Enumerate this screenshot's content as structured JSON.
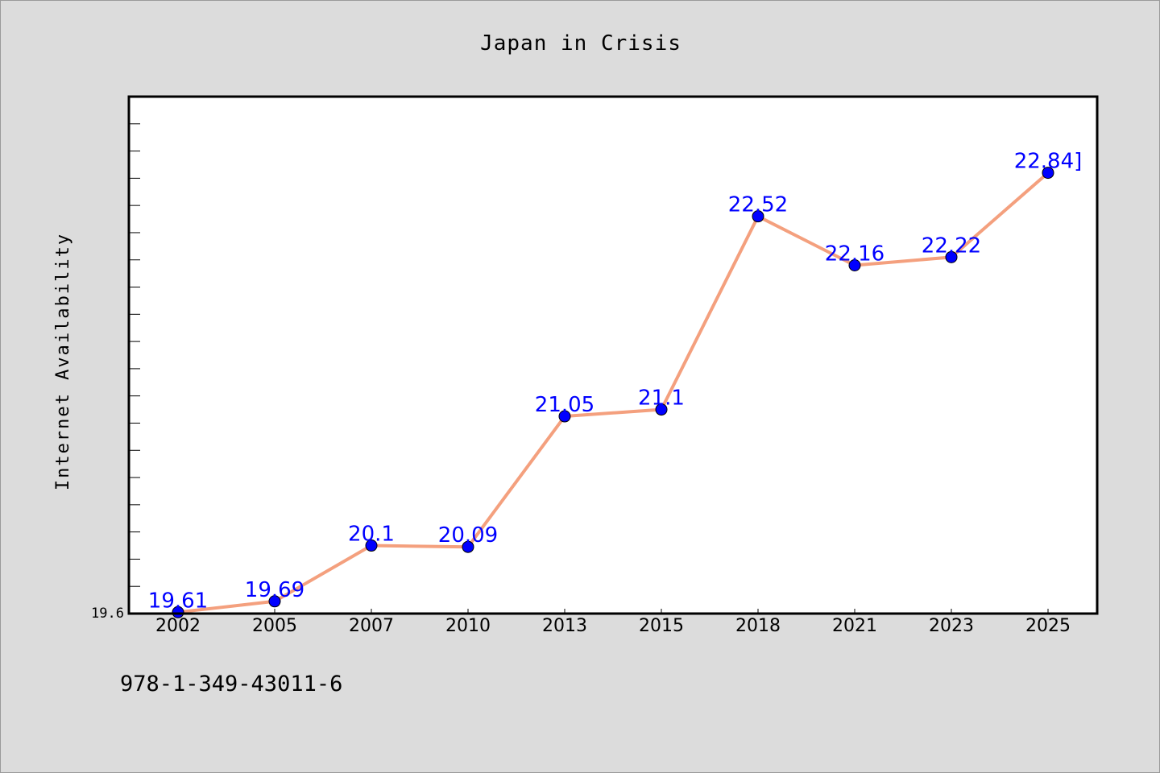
{
  "chart_data": {
    "type": "line",
    "title": "Japan in Crisis",
    "ylabel": "Internet Availability",
    "xlabel": "",
    "categories": [
      "2002",
      "2005",
      "2007",
      "2010",
      "2013",
      "2015",
      "2018",
      "2021",
      "2023",
      "2025"
    ],
    "series": [
      {
        "values": [
          19.61,
          19.69,
          20.1,
          20.09,
          21.05,
          21.1,
          22.52,
          22.16,
          22.22,
          22.84
        ]
      }
    ],
    "data_labels": [
      "19.61",
      "19.69",
      "20.1",
      "20.09",
      "21.05",
      "21.1",
      "22.52",
      "22.16",
      "22.22",
      "22.84]"
    ],
    "ylim": [
      19.6,
      23.4
    ],
    "y_tick_label": "19.6",
    "grid": false,
    "legend": "none",
    "colors": {
      "line": "#f4a07e",
      "marker": "#0000ff",
      "data_label": "#0000ff",
      "background": "#dcdcdc",
      "plot_background": "#ffffff"
    }
  },
  "footer": {
    "isbn": "978-1-349-43011-6"
  }
}
